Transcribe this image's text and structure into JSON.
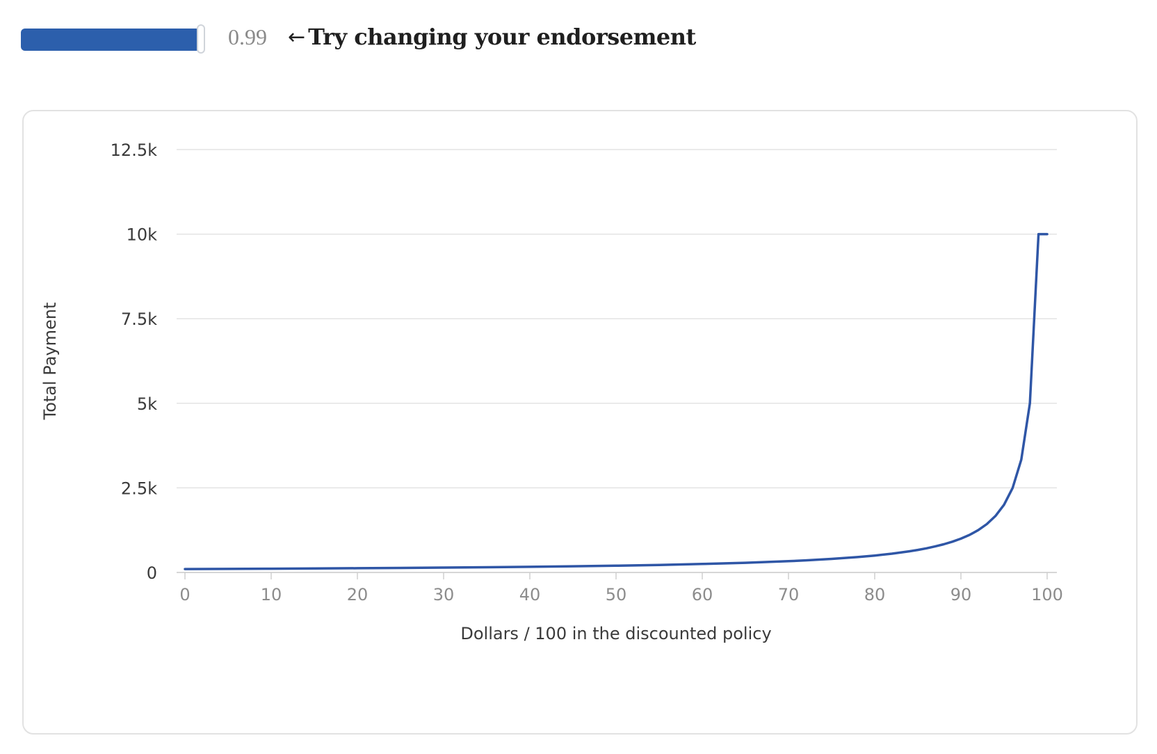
{
  "control": {
    "slider_value": 0.99,
    "value_label": "0.99",
    "hint_arrow": "←",
    "hint_text": "Try changing your endorsement",
    "accent_color": "#2c5fac"
  },
  "chart_data": {
    "type": "line",
    "title": "",
    "xlabel": "Dollars / 100 in the discounted policy",
    "ylabel": "Total Payment",
    "xlim": [
      0,
      100
    ],
    "ylim": [
      0,
      12500
    ],
    "x_ticks": [
      0,
      10,
      20,
      30,
      40,
      50,
      60,
      70,
      80,
      90,
      100
    ],
    "x_tick_labels": [
      "0",
      "10",
      "20",
      "30",
      "40",
      "50",
      "60",
      "70",
      "80",
      "90",
      "100"
    ],
    "y_ticks": [
      0,
      2500,
      5000,
      7500,
      10000,
      12500
    ],
    "y_tick_labels": [
      "0",
      "2.5k",
      "5k",
      "7.5k",
      "10k",
      "12.5k"
    ],
    "grid": true,
    "line_color": "#2f56a6",
    "series": [
      {
        "x": [
          0,
          5,
          10,
          15,
          20,
          25,
          30,
          35,
          40,
          45,
          50,
          55,
          60,
          65,
          70,
          72,
          75,
          78,
          80,
          82,
          84,
          85,
          86,
          87,
          88,
          89,
          90,
          91,
          92,
          93,
          94,
          95,
          96,
          97,
          98,
          99,
          100
        ],
        "values": [
          100,
          105,
          111,
          118,
          125,
          133,
          143,
          154,
          167,
          182,
          200,
          222,
          250,
          286,
          333,
          357,
          400,
          455,
          500,
          556,
          625,
          667,
          714,
          769,
          833,
          909,
          1000,
          1111,
          1250,
          1429,
          1667,
          2000,
          2500,
          3333,
          5000,
          10000,
          10000
        ]
      }
    ]
  }
}
